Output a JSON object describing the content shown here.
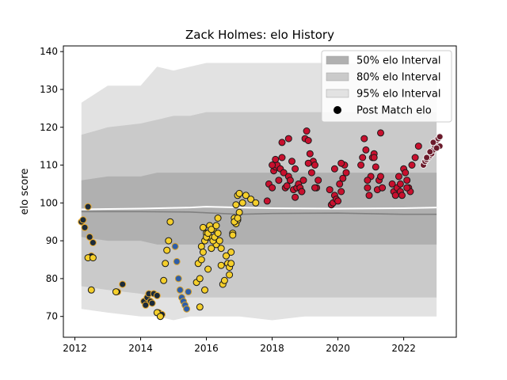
{
  "chart_data": {
    "type": "scatter",
    "title": "Zack Holmes: elo History",
    "xlabel": "",
    "ylabel": "elo score",
    "xlim": [
      2011.65,
      2023.6
    ],
    "ylim": [
      64.5,
      141.5
    ],
    "xticks": [
      2012,
      2014,
      2016,
      2018,
      2020,
      2022
    ],
    "yticks": [
      70,
      80,
      90,
      100,
      110,
      120,
      130,
      140
    ],
    "grid": false,
    "legend_position": "top-right",
    "legend": [
      {
        "label": "50% elo Interval",
        "kind": "band",
        "color": "#b0b0b0"
      },
      {
        "label": "80% elo Interval",
        "kind": "band",
        "color": "#cacaca"
      },
      {
        "label": "95% elo Interval",
        "kind": "band",
        "color": "#e2e2e2"
      },
      {
        "label": "Post Match elo",
        "kind": "marker",
        "color": "#000000"
      }
    ],
    "bands": {
      "x": [
        2012.2,
        2013.0,
        2014.0,
        2014.5,
        2015.0,
        2015.5,
        2016.0,
        2017.0,
        2018.0,
        2019.0,
        2020.0,
        2021.0,
        2022.0,
        2023.0
      ],
      "p95_upper": [
        126.5,
        131,
        131,
        136,
        135,
        136,
        137,
        137,
        137,
        137,
        137,
        137,
        137,
        137
      ],
      "p95_lower": [
        72,
        71,
        70,
        70,
        69,
        70,
        70,
        70,
        69,
        70,
        70,
        70,
        70,
        70
      ],
      "p80_upper": [
        118,
        120,
        121,
        122,
        123,
        123,
        124,
        124,
        124,
        124,
        124,
        124,
        124,
        124
      ],
      "p80_lower": [
        78,
        77,
        76,
        75,
        75,
        75,
        75,
        75,
        75,
        75,
        75,
        75,
        75,
        75
      ],
      "p50_upper": [
        106,
        107,
        107,
        108,
        108,
        108,
        108,
        108,
        108,
        108,
        108,
        108,
        108,
        108
      ],
      "p50_lower": [
        91,
        90,
        90,
        89,
        89,
        89,
        89,
        89,
        89,
        89,
        89,
        89,
        89,
        89
      ]
    },
    "median_line": {
      "color": "#ffffff",
      "x": [
        2012.2,
        2014.0,
        2015.5,
        2016.0,
        2017.0,
        2018.0,
        2020.0,
        2022.0,
        2023.0
      ],
      "y": [
        98.3,
        98.5,
        98.8,
        99.0,
        98.8,
        98.6,
        98.5,
        98.6,
        98.8
      ]
    },
    "mean_line": {
      "color": "#808080",
      "x": [
        2012.2,
        2014.0,
        2015.5,
        2016.0,
        2017.0,
        2018.0,
        2020.0,
        2022.0,
        2023.0
      ],
      "y": [
        97.7,
        97.7,
        97.6,
        97.4,
        97.0,
        97.2,
        97.3,
        97.0,
        97.0
      ]
    },
    "series": [
      {
        "name": "",
        "color": "#1c2b3a",
        "edge": "#e8a92a",
        "x": [
          2012.2,
          2012.25,
          2012.3,
          2012.4,
          2012.45,
          2012.5,
          2012.55,
          2013.3,
          2013.45,
          2014.1,
          2014.15,
          2014.2,
          2014.25,
          2014.3,
          2014.35,
          2014.4,
          2014.5,
          2014.55,
          2014.65
        ],
        "y": [
          95,
          95.5,
          93.5,
          99,
          91,
          86,
          89.5,
          76.5,
          78.5,
          74,
          73,
          75,
          76,
          74,
          73.5,
          76,
          75.5,
          71,
          70.5
        ]
      },
      {
        "name": "",
        "color": "#f5cf2b",
        "edge": "#1a1a1a",
        "x": [
          2012.4,
          2012.5,
          2012.55,
          2013.25,
          2014.5,
          2014.6,
          2014.7,
          2014.75,
          2014.8,
          2014.85,
          2014.9,
          2015.85,
          2015.9,
          2016.0,
          2016.1,
          2016.2,
          2016.3,
          2016.5,
          2016.65,
          2016.75,
          2016.8,
          2016.85,
          2016.9,
          2016.95,
          2017.0,
          2015.8,
          2015.95,
          2016.05,
          2016.15,
          2016.25,
          2016.35,
          2016.45,
          2016.55,
          2016.7,
          2016.8,
          2016.9,
          2016.95,
          2017.1,
          2017.2,
          2017.35,
          2017.5,
          2015.7,
          2015.75,
          2015.8,
          2015.85,
          2015.9,
          2015.95,
          2016.0,
          2016.05,
          2016.1,
          2016.15,
          2016.2,
          2016.25,
          2016.3,
          2016.35,
          2016.4,
          2016.45,
          2016.6,
          2016.7,
          2016.75,
          2016.85,
          2016.95,
          2017.0
        ],
        "y": [
          85.5,
          77,
          85.5,
          76.5,
          71,
          70,
          79.5,
          84,
          87.5,
          90,
          95,
          88.5,
          93.5,
          92,
          91,
          93,
          89,
          78.5,
          84,
          87,
          92,
          96,
          94.5,
          95.5,
          97.5,
          72.5,
          77,
          82.5,
          88,
          90.5,
          96,
          83.5,
          79.5,
          81,
          91.5,
          99.5,
          102,
          100,
          102,
          101,
          100,
          79,
          84,
          80,
          85,
          87,
          90,
          91,
          92,
          94,
          93,
          90,
          91,
          94,
          92,
          90,
          88,
          86,
          83,
          84,
          95,
          96,
          102.5
        ]
      },
      {
        "name": "",
        "color": "#2e5ea8",
        "edge": "#d6a02a",
        "x": [
          2015.05,
          2015.1,
          2015.15,
          2015.2,
          2015.25,
          2015.3,
          2015.35,
          2015.4,
          2015.45
        ],
        "y": [
          88.5,
          84.5,
          80,
          77,
          75,
          74,
          73,
          72,
          76.5
        ]
      },
      {
        "name": "",
        "color": "#c8102e",
        "edge": "#1a1a1a",
        "x": [
          2017.85,
          2017.9,
          2018.0,
          2018.05,
          2018.1,
          2018.15,
          2018.2,
          2018.25,
          2018.3,
          2018.35,
          2018.4,
          2018.45,
          2018.5,
          2018.55,
          2018.6,
          2018.65,
          2018.7,
          2018.75,
          2018.8,
          2018.85,
          2018.9,
          2018.95,
          2019.0,
          2019.05,
          2019.1,
          2019.15,
          2019.2,
          2019.25,
          2019.3,
          2019.35,
          2019.4,
          2019.75,
          2019.8,
          2019.85,
          2019.9,
          2019.95,
          2020.0,
          2020.05,
          2020.1,
          2020.15,
          2020.2,
          2020.25,
          2020.7,
          2020.75,
          2020.8,
          2020.85,
          2020.9,
          2020.95,
          2021.0,
          2021.05,
          2021.1,
          2021.15,
          2021.2,
          2021.25,
          2021.3,
          2021.35,
          2021.65,
          2021.7,
          2021.75,
          2021.8,
          2021.85,
          2021.9,
          2021.95,
          2022.0,
          2022.05,
          2022.1,
          2022.15,
          2022.2,
          2022.25,
          2022.35,
          2022.45,
          2018.0,
          2018.1,
          2018.3,
          2018.5,
          2018.7,
          2018.9,
          2019.1,
          2019.3,
          2019.9,
          2020.1,
          2020.9,
          2021.1,
          2021.3,
          2021.9,
          2022.1
        ],
        "y": [
          100.5,
          105,
          104,
          108.5,
          109.5,
          110,
          106,
          109,
          112,
          108,
          104,
          104.5,
          107,
          106,
          111,
          103.5,
          101.5,
          104,
          105,
          104,
          103,
          106,
          117,
          119,
          116.5,
          113,
          108,
          111,
          110,
          104,
          106,
          103.5,
          99.5,
          100,
          102,
          101,
          100.5,
          105,
          103,
          106.5,
          110,
          108,
          110,
          112,
          117,
          114,
          104,
          102,
          107,
          112,
          113,
          109.5,
          103.5,
          106,
          107,
          104,
          105,
          103,
          102,
          104,
          107,
          103,
          102,
          109,
          108,
          106,
          104,
          103,
          110,
          112,
          115,
          110,
          111.5,
          116,
          117,
          109,
          103,
          110.5,
          104,
          109,
          110.5,
          106,
          112,
          118.5,
          105,
          104
        ]
      },
      {
        "name": "",
        "color": "#6b1a2a",
        "edge": "#f0f0f0",
        "x": [
          2022.6,
          2022.65,
          2022.7,
          2022.75,
          2022.8,
          2022.85,
          2022.9,
          2022.95,
          2023.0,
          2023.05,
          2023.1,
          2022.7,
          2022.8,
          2022.9,
          2023.0,
          2023.1
        ],
        "y": [
          110,
          111,
          111.5,
          112,
          112.5,
          113,
          114,
          115,
          116.5,
          117,
          115,
          112,
          113.5,
          116,
          114.5,
          117.5
        ]
      }
    ]
  }
}
